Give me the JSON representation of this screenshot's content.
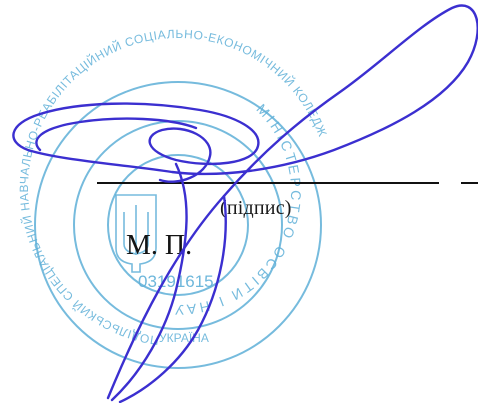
{
  "document": {
    "signature_caption": "(підпис)",
    "seal_place_label": "М. П."
  },
  "stamp": {
    "color": "#5fb0d8",
    "outer_ring_text": "ПОДІЛЬСЬКИЙ СПЕЦІАЛЬНИЙ НАВЧАЛЬНО-РЕАБІЛІТАЦІЙНИЙ СОЦІАЛЬНО-ЕКОНОМІЧНИЙ КОЛЕДЖ",
    "inner_ring_text": "МІНІСТЕРСТВО ОСВІТИ І НАУКИ УКРАЇНИ",
    "bottom_text": "УКРАЇНА",
    "code": "03191615"
  },
  "signature": {
    "ink_color": "#3b2fd0"
  }
}
